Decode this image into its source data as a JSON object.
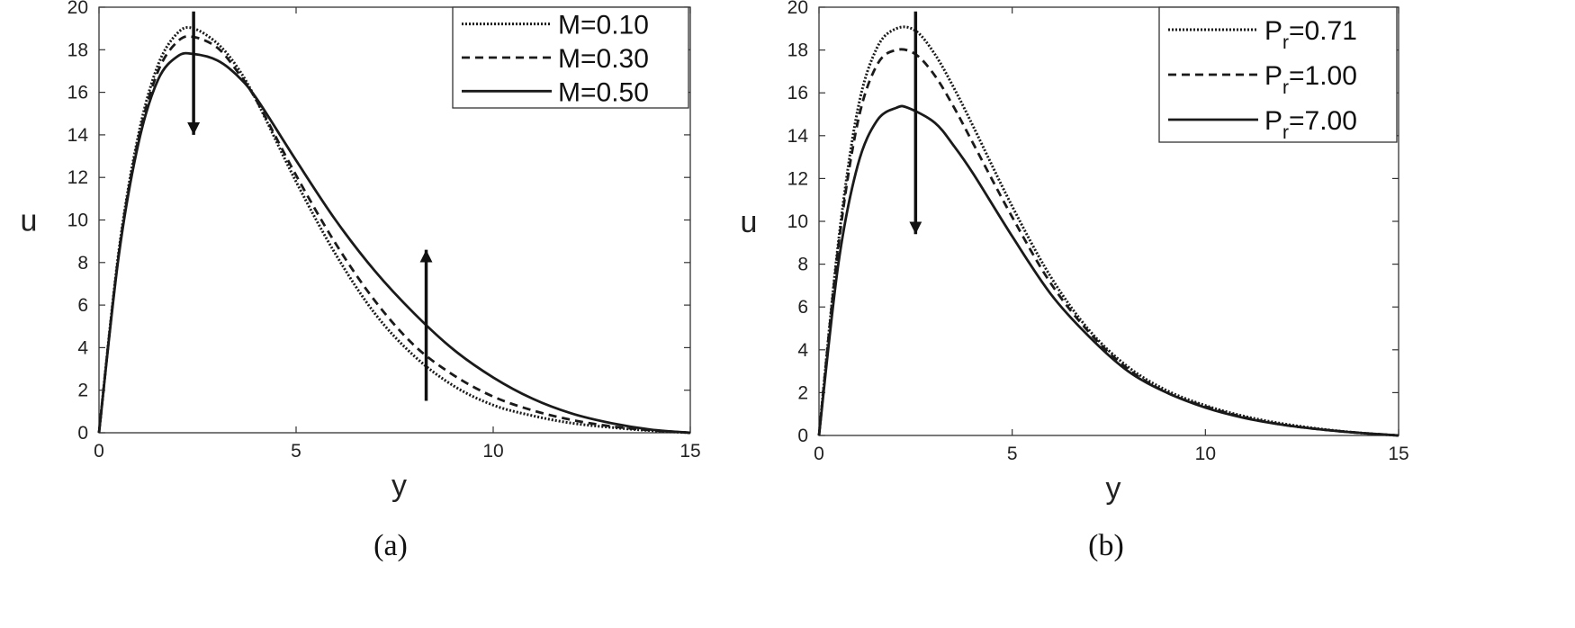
{
  "chart_data": [
    {
      "type": "line",
      "caption": "(a)",
      "xlabel": "y",
      "ylabel": "u",
      "xlim": [
        0,
        15
      ],
      "ylim": [
        0,
        20
      ],
      "xticks": [
        0,
        5,
        10,
        15
      ],
      "yticks": [
        0,
        2,
        4,
        6,
        8,
        10,
        12,
        14,
        16,
        18,
        20
      ],
      "grid": false,
      "legend_position": "top-right",
      "series": [
        {
          "name": "M=0.10",
          "legend_main": "M=0.10",
          "legend_sub": "",
          "legend_rest": "",
          "style": "dotted",
          "x": [
            0,
            0.5,
            1,
            1.5,
            2,
            2.4,
            3,
            3.5,
            4,
            5,
            6,
            7,
            8,
            9,
            10,
            11,
            12,
            13,
            14,
            15
          ],
          "y": [
            0,
            8.5,
            14,
            17.3,
            18.8,
            19.0,
            18.3,
            17.2,
            15.6,
            11.8,
            8.4,
            5.6,
            3.6,
            2.2,
            1.3,
            0.8,
            0.45,
            0.25,
            0.1,
            0
          ]
        },
        {
          "name": "M=0.30",
          "legend_main": "M=0.30",
          "legend_sub": "",
          "legend_rest": "",
          "style": "dashed",
          "x": [
            0,
            0.5,
            1,
            1.5,
            2,
            2.4,
            3,
            3.5,
            4,
            5,
            6,
            7,
            8,
            9,
            10,
            11,
            12,
            13,
            14,
            15
          ],
          "y": [
            0,
            8.4,
            13.8,
            17.0,
            18.4,
            18.6,
            18.1,
            17.0,
            15.6,
            12.1,
            8.9,
            6.2,
            4.1,
            2.7,
            1.7,
            1.05,
            0.6,
            0.3,
            0.12,
            0
          ]
        },
        {
          "name": "M=0.50",
          "legend_main": "M=0.50",
          "legend_sub": "",
          "legend_rest": "",
          "style": "solid",
          "x": [
            0,
            0.5,
            1,
            1.5,
            2,
            2.4,
            3,
            3.5,
            4,
            5,
            6,
            7,
            8,
            9,
            10,
            11,
            12,
            13,
            14,
            15
          ],
          "y": [
            0,
            8.3,
            13.6,
            16.6,
            17.7,
            17.8,
            17.5,
            16.8,
            15.7,
            12.8,
            10.0,
            7.6,
            5.6,
            3.9,
            2.6,
            1.6,
            0.9,
            0.45,
            0.15,
            0
          ]
        }
      ],
      "annotations": [
        {
          "type": "arrow",
          "from": [
            2.4,
            19.8
          ],
          "to": [
            2.4,
            14.0
          ],
          "direction": "down"
        },
        {
          "type": "arrow",
          "from": [
            8.3,
            1.5
          ],
          "to": [
            8.3,
            8.6
          ],
          "direction": "up"
        }
      ]
    },
    {
      "type": "line",
      "caption": "(b)",
      "xlabel": "y",
      "ylabel": "u",
      "xlim": [
        0,
        15
      ],
      "ylim": [
        0,
        20
      ],
      "xticks": [
        0,
        5,
        10,
        15
      ],
      "yticks": [
        0,
        2,
        4,
        6,
        8,
        10,
        12,
        14,
        16,
        18,
        20
      ],
      "grid": false,
      "legend_position": "top-right",
      "series": [
        {
          "name": "Pr=0.71",
          "legend_main": "P",
          "legend_sub": "r",
          "legend_rest": "=0.71",
          "style": "dotted",
          "x": [
            0,
            0.5,
            1,
            1.5,
            2,
            2.5,
            3,
            3.5,
            4,
            5,
            6,
            7,
            8,
            9,
            10,
            11,
            12,
            13,
            14,
            15
          ],
          "y": [
            0,
            9.0,
            15.2,
            18.1,
            19.0,
            18.9,
            17.8,
            16.2,
            14.4,
            10.7,
            7.4,
            4.9,
            3.2,
            2.1,
            1.4,
            0.9,
            0.55,
            0.3,
            0.12,
            0
          ]
        },
        {
          "name": "Pr=1.00",
          "legend_main": "P",
          "legend_sub": "r",
          "legend_rest": "=1.00",
          "style": "dashed",
          "x": [
            0,
            0.5,
            1,
            1.5,
            2,
            2.5,
            3,
            3.5,
            4,
            5,
            6,
            7,
            8,
            9,
            10,
            11,
            12,
            13,
            14,
            15
          ],
          "y": [
            0,
            8.8,
            14.6,
            17.3,
            18.0,
            17.8,
            16.8,
            15.3,
            13.6,
            10.2,
            7.1,
            4.8,
            3.1,
            2.0,
            1.35,
            0.85,
            0.5,
            0.28,
            0.12,
            0
          ]
        },
        {
          "name": "Pr=7.00",
          "legend_main": "P",
          "legend_sub": "r",
          "legend_rest": "=7.00",
          "style": "solid",
          "x": [
            0,
            0.5,
            1,
            1.5,
            2,
            2.3,
            3,
            3.5,
            4,
            5,
            6,
            7,
            8,
            9,
            10,
            11,
            12,
            13,
            14,
            15
          ],
          "y": [
            0,
            8.0,
            12.6,
            14.7,
            15.3,
            15.3,
            14.6,
            13.5,
            12.2,
            9.3,
            6.6,
            4.6,
            3.0,
            2.0,
            1.3,
            0.82,
            0.5,
            0.28,
            0.12,
            0
          ]
        }
      ],
      "annotations": [
        {
          "type": "arrow",
          "from": [
            2.5,
            19.8
          ],
          "to": [
            2.5,
            9.4
          ],
          "direction": "down"
        }
      ]
    }
  ]
}
